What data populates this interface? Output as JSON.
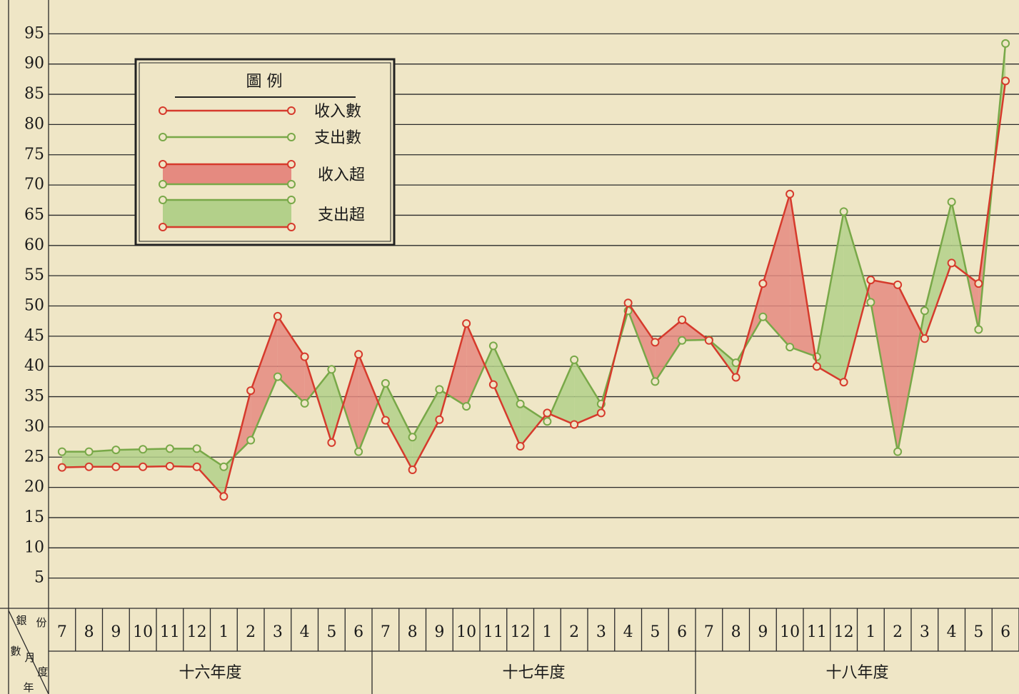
{
  "chart_data": {
    "type": "line",
    "categories": [
      "7",
      "8",
      "9",
      "10",
      "11",
      "12",
      "1",
      "2",
      "3",
      "4",
      "5",
      "6",
      "7",
      "8",
      "9",
      "10",
      "11",
      "12",
      "1",
      "2",
      "3",
      "4",
      "5",
      "6",
      "7",
      "8",
      "9",
      "10",
      "11",
      "12",
      "1",
      "2",
      "3",
      "4",
      "5",
      "6"
    ],
    "groups": [
      {
        "label": "十六年度",
        "span": 12
      },
      {
        "label": "十七年度",
        "span": 12
      },
      {
        "label": "十八年度",
        "span": 12
      }
    ],
    "corner_labels": [
      "銀",
      "份",
      "數",
      "月",
      "度",
      "年"
    ],
    "series": [
      {
        "name": "收入數",
        "color": "#d63a2c",
        "values": [
          23.3,
          23.4,
          23.4,
          23.4,
          23.5,
          23.4,
          18.5,
          36,
          48.3,
          41.6,
          27.4,
          42,
          31.1,
          22.9,
          31.2,
          47.1,
          37,
          26.8,
          32.3,
          30.4,
          32.3,
          50.5,
          44,
          47.7,
          44.3,
          38.2,
          53.7,
          68.5,
          40,
          37.4,
          54.3,
          53.5,
          44.6,
          57.1,
          53.7,
          87.2
        ]
      },
      {
        "name": "支出數",
        "color": "#78a848",
        "values": [
          25.9,
          25.9,
          26.2,
          26.3,
          26.4,
          26.4,
          23.4,
          27.8,
          38.3,
          33.9,
          39.5,
          25.9,
          37.2,
          28.3,
          36.2,
          33.4,
          43.4,
          33.8,
          30.9,
          41.1,
          33.8,
          49.2,
          37.5,
          44.3,
          44.4,
          40.6,
          48.2,
          43.2,
          41.6,
          65.6,
          50.6,
          25.9,
          49.2,
          67.2,
          46.1,
          93.4
        ]
      }
    ],
    "fills": [
      {
        "name": "收入超",
        "color": "#e58a80"
      },
      {
        "name": "支出超",
        "color": "#b3d08a"
      }
    ],
    "legend_title": "圖 例",
    "ylim": [
      0,
      100
    ],
    "yticks": [
      5,
      10,
      15,
      20,
      25,
      30,
      35,
      40,
      45,
      50,
      55,
      60,
      65,
      70,
      75,
      80,
      85,
      90,
      95
    ],
    "grid": true
  }
}
